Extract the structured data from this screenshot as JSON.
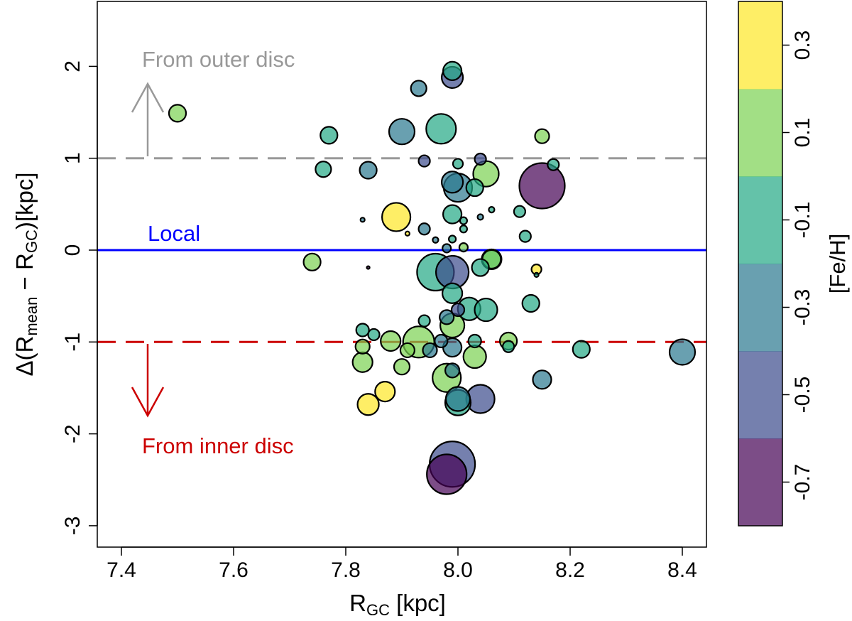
{
  "chart_data": {
    "type": "scatter",
    "xlabel_main": "R",
    "xlabel_sub": "GC",
    "xlabel_unit": " [kpc]",
    "ylabel": {
      "prefix": "Δ(R",
      "sub1": "mean",
      "mid": " − R",
      "sub2": "GC",
      "suffix": ")[kpc]"
    },
    "xlim": [
      7.36,
      8.44
    ],
    "ylim": [
      -3,
      2.7
    ],
    "xticks": [
      7.4,
      7.6,
      7.8,
      8.0,
      8.2,
      8.4
    ],
    "xtick_labels": [
      "7.4",
      "7.6",
      "7.8",
      "8.0",
      "8.2",
      "8.4"
    ],
    "yticks": [
      2,
      1,
      0,
      -1,
      -2,
      -3
    ],
    "ytick_labels": [
      "2",
      "1",
      "0",
      "-1",
      "-2",
      "-3"
    ],
    "reference_lines": [
      {
        "y": 1,
        "style": "dashed",
        "color": "#999999"
      },
      {
        "y": 0,
        "style": "solid",
        "color": "#0000ff"
      },
      {
        "y": -1,
        "style": "dashed",
        "color": "#cc0000"
      }
    ],
    "annotations": [
      {
        "text": "From outer disc",
        "color": "#999999"
      },
      {
        "text": "Local",
        "color": "#0000ff"
      },
      {
        "text": "From inner disc",
        "color": "#cc0000"
      }
    ],
    "colorbar": {
      "label": "[Fe/H]",
      "bands": [
        {
          "value": -0.7,
          "color": "#440154"
        },
        {
          "value": -0.5,
          "color": "#3b4a8c"
        },
        {
          "value": -0.3,
          "color": "#2a788e"
        },
        {
          "value": -0.1,
          "color": "#22a884"
        },
        {
          "value": 0.1,
          "color": "#7ad151"
        },
        {
          "value": 0.3,
          "color": "#fde725"
        }
      ],
      "tick_labels": [
        "0.3",
        "0.1",
        "-0.1",
        "-0.3",
        "-0.5",
        "-0.7"
      ]
    },
    "points": [
      {
        "x": 7.5,
        "y": 1.49,
        "feh": 0.1,
        "size": 12
      },
      {
        "x": 7.77,
        "y": 1.25,
        "feh": -0.1,
        "size": 12
      },
      {
        "x": 7.76,
        "y": 0.88,
        "feh": -0.1,
        "size": 11
      },
      {
        "x": 7.93,
        "y": 1.76,
        "feh": -0.3,
        "size": 11
      },
      {
        "x": 7.9,
        "y": 1.29,
        "feh": -0.3,
        "size": 18
      },
      {
        "x": 7.97,
        "y": 1.32,
        "feh": -0.1,
        "size": 21
      },
      {
        "x": 7.99,
        "y": 1.88,
        "feh": -0.5,
        "size": 15
      },
      {
        "x": 7.99,
        "y": 1.95,
        "feh": -0.1,
        "size": 13
      },
      {
        "x": 8.15,
        "y": 1.24,
        "feh": 0.1,
        "size": 10
      },
      {
        "x": 7.84,
        "y": 0.87,
        "feh": -0.3,
        "size": 12
      },
      {
        "x": 7.94,
        "y": 0.97,
        "feh": -0.5,
        "size": 8
      },
      {
        "x": 8.0,
        "y": 0.94,
        "feh": -0.1,
        "size": 7
      },
      {
        "x": 8.04,
        "y": 0.99,
        "feh": -0.5,
        "size": 8
      },
      {
        "x": 8.15,
        "y": 0.7,
        "feh": -0.7,
        "size": 32
      },
      {
        "x": 8.17,
        "y": 0.93,
        "feh": -0.1,
        "size": 8
      },
      {
        "x": 8.03,
        "y": 0.68,
        "feh": -0.1,
        "size": 12
      },
      {
        "x": 8.0,
        "y": 0.68,
        "feh": -0.3,
        "size": 20
      },
      {
        "x": 7.99,
        "y": 0.74,
        "feh": -0.3,
        "size": 15
      },
      {
        "x": 8.05,
        "y": 0.83,
        "feh": 0.1,
        "size": 18
      },
      {
        "x": 7.89,
        "y": 0.36,
        "feh": 0.3,
        "size": 20
      },
      {
        "x": 7.99,
        "y": 0.39,
        "feh": -0.1,
        "size": 13
      },
      {
        "x": 8.11,
        "y": 0.42,
        "feh": -0.1,
        "size": 8
      },
      {
        "x": 8.12,
        "y": 0.15,
        "feh": -0.1,
        "size": 8
      },
      {
        "x": 7.94,
        "y": 0.23,
        "feh": -0.3,
        "size": 8
      },
      {
        "x": 8.06,
        "y": 0.44,
        "feh": -0.1,
        "size": 4
      },
      {
        "x": 8.04,
        "y": 0.36,
        "feh": -0.3,
        "size": 4
      },
      {
        "x": 7.83,
        "y": 0.33,
        "feh": -0.3,
        "size": 3
      },
      {
        "x": 7.91,
        "y": 0.18,
        "feh": 0.3,
        "size": 3
      },
      {
        "x": 8.01,
        "y": 0.32,
        "feh": -0.1,
        "size": 5
      },
      {
        "x": 8.01,
        "y": 0.23,
        "feh": -0.1,
        "size": 5
      },
      {
        "x": 7.99,
        "y": 0.12,
        "feh": -0.1,
        "size": 5
      },
      {
        "x": 7.96,
        "y": 0.11,
        "feh": -0.3,
        "size": 4
      },
      {
        "x": 7.98,
        "y": 0.02,
        "feh": -0.3,
        "size": 6
      },
      {
        "x": 8.01,
        "y": 0.03,
        "feh": 0.1,
        "size": 6
      },
      {
        "x": 7.84,
        "y": -0.19,
        "feh": -0.7,
        "size": 2
      },
      {
        "x": 7.74,
        "y": -0.13,
        "feh": 0.1,
        "size": 12
      },
      {
        "x": 8.14,
        "y": -0.21,
        "feh": 0.3,
        "size": 7
      },
      {
        "x": 8.14,
        "y": -0.27,
        "feh": -0.1,
        "size": 3
      },
      {
        "x": 7.96,
        "y": -0.24,
        "feh": -0.1,
        "size": 26
      },
      {
        "x": 7.99,
        "y": -0.24,
        "feh": -0.5,
        "size": 23
      },
      {
        "x": 8.06,
        "y": -0.1,
        "feh": 0.1,
        "size": 13
      },
      {
        "x": 8.06,
        "y": -0.1,
        "feh": -0.1,
        "size": 14
      },
      {
        "x": 8.04,
        "y": -0.19,
        "feh": -0.1,
        "size": 12
      },
      {
        "x": 7.99,
        "y": -0.47,
        "feh": -0.1,
        "size": 14
      },
      {
        "x": 7.98,
        "y": -0.73,
        "feh": -0.3,
        "size": 10
      },
      {
        "x": 8.0,
        "y": -0.65,
        "feh": -0.5,
        "size": 9
      },
      {
        "x": 8.02,
        "y": -0.64,
        "feh": -0.1,
        "size": 16
      },
      {
        "x": 8.05,
        "y": -0.65,
        "feh": -0.1,
        "size": 16
      },
      {
        "x": 8.13,
        "y": -0.58,
        "feh": -0.1,
        "size": 12
      },
      {
        "x": 7.99,
        "y": -0.82,
        "feh": 0.1,
        "size": 17
      },
      {
        "x": 7.94,
        "y": -0.77,
        "feh": -0.1,
        "size": 8
      },
      {
        "x": 7.93,
        "y": -1.0,
        "feh": 0.1,
        "size": 22
      },
      {
        "x": 7.97,
        "y": -0.99,
        "feh": -0.3,
        "size": 9
      },
      {
        "x": 7.99,
        "y": -1.06,
        "feh": -0.3,
        "size": 13
      },
      {
        "x": 8.03,
        "y": -0.99,
        "feh": -0.1,
        "size": 9
      },
      {
        "x": 8.09,
        "y": -0.99,
        "feh": 0.1,
        "size": 12
      },
      {
        "x": 8.09,
        "y": -1.05,
        "feh": -0.1,
        "size": 8
      },
      {
        "x": 7.91,
        "y": -1.09,
        "feh": 0.1,
        "size": 10
      },
      {
        "x": 7.95,
        "y": -1.09,
        "feh": -0.3,
        "size": 10
      },
      {
        "x": 8.03,
        "y": -1.16,
        "feh": 0.1,
        "size": 16
      },
      {
        "x": 7.99,
        "y": -1.31,
        "feh": -0.3,
        "size": 10
      },
      {
        "x": 7.98,
        "y": -1.39,
        "feh": 0.1,
        "size": 20
      },
      {
        "x": 8.0,
        "y": -1.62,
        "feh": -0.3,
        "size": 17
      },
      {
        "x": 8.0,
        "y": -1.66,
        "feh": -0.1,
        "size": 18
      },
      {
        "x": 8.04,
        "y": -1.62,
        "feh": -0.5,
        "size": 20
      },
      {
        "x": 7.87,
        "y": -1.54,
        "feh": 0.3,
        "size": 14
      },
      {
        "x": 7.84,
        "y": -1.68,
        "feh": 0.3,
        "size": 15
      },
      {
        "x": 7.83,
        "y": -0.87,
        "feh": -0.1,
        "size": 9
      },
      {
        "x": 7.85,
        "y": -0.92,
        "feh": -0.1,
        "size": 8
      },
      {
        "x": 7.83,
        "y": -1.05,
        "feh": 0.1,
        "size": 10
      },
      {
        "x": 7.83,
        "y": -1.22,
        "feh": 0.1,
        "size": 14
      },
      {
        "x": 7.88,
        "y": -0.99,
        "feh": 0.1,
        "size": 14
      },
      {
        "x": 7.9,
        "y": -1.27,
        "feh": 0.1,
        "size": 11
      },
      {
        "x": 8.22,
        "y": -1.08,
        "feh": -0.1,
        "size": 12
      },
      {
        "x": 8.4,
        "y": -1.11,
        "feh": -0.3,
        "size": 18
      },
      {
        "x": 8.15,
        "y": -1.41,
        "feh": -0.3,
        "size": 13
      },
      {
        "x": 7.99,
        "y": -2.33,
        "feh": -0.5,
        "size": 32
      },
      {
        "x": 7.98,
        "y": -2.44,
        "feh": -0.7,
        "size": 28
      }
    ]
  }
}
